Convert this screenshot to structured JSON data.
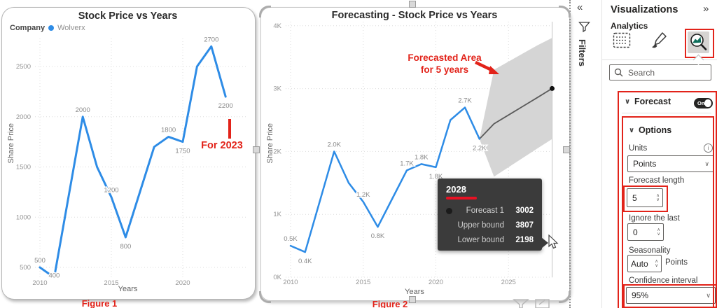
{
  "colors": {
    "line_blue": "#2e8ce6",
    "forecast_line": "#5a5a5a",
    "band_gray": "#d5d5d5",
    "annotation_red": "#e2231a",
    "tooltip_red": "#e81123",
    "analytics_green": "#0e6f5c"
  },
  "icons": {
    "chevron_down": "∨",
    "chevron_up": "∧",
    "collapse": "«",
    "expand": "»"
  },
  "figure1": {
    "caption": "Figure 1",
    "annotation": "For 2023"
  },
  "figure2": {
    "caption": "Figure 2",
    "annotation_line1": "Forecasted Area",
    "annotation_line2": "for 5 years",
    "tooltip": {
      "title": "2028",
      "rows": [
        {
          "label": "Forecast 1",
          "value": "3002",
          "bullet": true
        },
        {
          "label": "Upper bound",
          "value": "3807",
          "bullet": false
        },
        {
          "label": "Lower bound",
          "value": "2198",
          "bullet": false
        }
      ]
    }
  },
  "chart_data": [
    {
      "type": "line",
      "title": "Stock Price vs Years",
      "xlabel": "Years",
      "ylabel": "Share Price",
      "legend": {
        "title": "Company",
        "series": "Wolverx"
      },
      "yticks": [
        {
          "v": 500,
          "label": "500"
        },
        {
          "v": 1000,
          "label": "1000"
        },
        {
          "v": 1500,
          "label": "1500"
        },
        {
          "v": 2000,
          "label": "2000"
        },
        {
          "v": 2500,
          "label": "2500"
        }
      ],
      "xticks": [
        {
          "v": 2010,
          "label": "2010"
        },
        {
          "v": 2015,
          "label": "2015"
        },
        {
          "v": 2020,
          "label": "2020"
        }
      ],
      "series": [
        {
          "year": 2010,
          "value": 500,
          "label": "500",
          "pos": "above"
        },
        {
          "year": 2011,
          "value": 400,
          "label": "400",
          "pos": "mid"
        },
        {
          "year": 2012,
          "value": 1200,
          "label": null
        },
        {
          "year": 2013,
          "value": 2000,
          "label": "2000",
          "pos": "above"
        },
        {
          "year": 2014,
          "value": 1500,
          "label": null
        },
        {
          "year": 2015,
          "value": 1200,
          "label": "1200",
          "pos": "above"
        },
        {
          "year": 2016,
          "value": 800,
          "label": "800",
          "pos": "below"
        },
        {
          "year": 2017,
          "value": 1250,
          "label": null
        },
        {
          "year": 2018,
          "value": 1700,
          "label": null
        },
        {
          "year": 2019,
          "value": 1800,
          "label": "1800",
          "pos": "above"
        },
        {
          "year": 2020,
          "value": 1750,
          "label": "1750",
          "pos": "below"
        },
        {
          "year": 2021,
          "value": 2500,
          "label": null
        },
        {
          "year": 2022,
          "value": 2700,
          "label": "2700",
          "pos": "above"
        },
        {
          "year": 2023,
          "value": 2200,
          "label": "2200",
          "pos": "below"
        }
      ]
    },
    {
      "type": "line-forecast",
      "title": "Forecasting - Stock Price vs Years",
      "xlabel": "Years",
      "ylabel": "Share Price",
      "yticks": [
        {
          "v": 0,
          "label": "0K"
        },
        {
          "v": 1000,
          "label": "1K"
        },
        {
          "v": 2000,
          "label": "2K"
        },
        {
          "v": 3000,
          "label": "3K"
        },
        {
          "v": 4000,
          "label": "4K"
        }
      ],
      "xticks": [
        {
          "v": 2010,
          "label": "2010"
        },
        {
          "v": 2015,
          "label": "2015"
        },
        {
          "v": 2020,
          "label": "2020"
        },
        {
          "v": 2025,
          "label": "2025"
        }
      ],
      "series": [
        {
          "year": 2010,
          "value": 500,
          "label": "0.5K",
          "pos": "above"
        },
        {
          "year": 2011,
          "value": 400,
          "label": "0.4K",
          "pos": "below"
        },
        {
          "year": 2012,
          "value": 1200,
          "label": null
        },
        {
          "year": 2013,
          "value": 2000,
          "label": "2.0K",
          "pos": "above"
        },
        {
          "year": 2014,
          "value": 1500,
          "label": null
        },
        {
          "year": 2015,
          "value": 1200,
          "label": "1.2K",
          "pos": "above"
        },
        {
          "year": 2016,
          "value": 800,
          "label": "0.8K",
          "pos": "below"
        },
        {
          "year": 2017,
          "value": 1250,
          "label": null
        },
        {
          "year": 2018,
          "value": 1700,
          "label": "1.7K",
          "pos": "above"
        },
        {
          "year": 2019,
          "value": 1800,
          "label": "1.8K",
          "pos": "above"
        },
        {
          "year": 2020,
          "value": 1750,
          "label": "1.8K",
          "pos": "below"
        },
        {
          "year": 2021,
          "value": 2500,
          "label": null
        },
        {
          "year": 2022,
          "value": 2700,
          "label": "2.7K",
          "pos": "above"
        },
        {
          "year": 2023,
          "value": 2200,
          "label": "2.2K",
          "pos": "below"
        }
      ],
      "forecast": {
        "years": [
          2023,
          2024,
          2025,
          2026,
          2027,
          2028
        ],
        "values": [
          2200,
          2440,
          2580,
          2720,
          2860,
          3002
        ],
        "upper": [
          2200,
          3300,
          3430,
          3560,
          3690,
          3807
        ],
        "lower": [
          2200,
          1600,
          1750,
          1900,
          2050,
          2198
        ]
      }
    }
  ],
  "filters_pane": {
    "label": "Filters"
  },
  "viz_pane": {
    "title": "Visualizations",
    "section_label": "Analytics",
    "search_placeholder": "Search",
    "forecast": {
      "header": "Forecast",
      "toggle": "On",
      "options_header": "Options",
      "units_label": "Units",
      "units_value": "Points",
      "forecast_length_label": "Forecast length",
      "forecast_length_value": "5",
      "ignore_label": "Ignore the last",
      "ignore_value": "0",
      "seasonality_label": "Seasonality",
      "seasonality_value": "Auto",
      "seasonality_unit": "Points",
      "confidence_label": "Confidence interval",
      "confidence_value": "95%"
    }
  }
}
